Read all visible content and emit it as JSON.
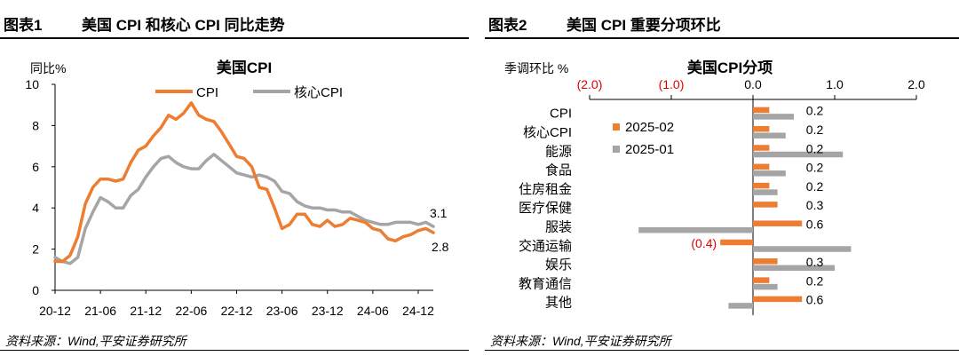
{
  "colors": {
    "primary": "#ED7D31",
    "secondary": "#A5A5A5",
    "negative_label": "#E00000"
  },
  "fig1": {
    "number": "图表1",
    "header_title": "美国 CPI 和核心 CPI 同比走势",
    "source": "资料来源：Wind,平安证券研究所"
  },
  "fig2": {
    "number": "图表2",
    "header_title": "美国 CPI 重要分项环比",
    "source": "资料来源：Wind,平安证券研究所"
  },
  "chart_data": [
    {
      "type": "line",
      "title": "美国CPI",
      "ylabel": "同比%",
      "ylim": [
        0,
        10
      ],
      "yticks": [
        "0",
        "2",
        "4",
        "6",
        "8",
        "10"
      ],
      "xtick_labels": [
        "20-12",
        "21-06",
        "21-12",
        "22-06",
        "22-12",
        "23-06",
        "23-12",
        "24-06",
        "24-12"
      ],
      "legend_position": "top",
      "grid": false,
      "x": [
        "20-12",
        "21-01",
        "21-02",
        "21-03",
        "21-04",
        "21-05",
        "21-06",
        "21-07",
        "21-08",
        "21-09",
        "21-10",
        "21-11",
        "21-12",
        "22-01",
        "22-02",
        "22-03",
        "22-04",
        "22-05",
        "22-06",
        "22-07",
        "22-08",
        "22-09",
        "22-10",
        "22-11",
        "22-12",
        "23-01",
        "23-02",
        "23-03",
        "23-04",
        "23-05",
        "23-06",
        "23-07",
        "23-08",
        "23-09",
        "23-10",
        "23-11",
        "23-12",
        "24-01",
        "24-02",
        "24-03",
        "24-04",
        "24-05",
        "24-06",
        "24-07",
        "24-08",
        "24-09",
        "24-10",
        "24-11",
        "24-12",
        "25-01",
        "25-02"
      ],
      "series": [
        {
          "name": "CPI",
          "color": "#ED7D31",
          "values": [
            1.4,
            1.4,
            1.7,
            2.6,
            4.2,
            5.0,
            5.4,
            5.4,
            5.3,
            5.4,
            6.2,
            6.8,
            7.0,
            7.5,
            7.9,
            8.5,
            8.3,
            8.6,
            9.1,
            8.5,
            8.3,
            8.2,
            7.7,
            7.1,
            6.5,
            6.4,
            6.0,
            5.0,
            4.9,
            4.0,
            3.0,
            3.2,
            3.7,
            3.7,
            3.2,
            3.1,
            3.4,
            3.1,
            3.2,
            3.5,
            3.4,
            3.3,
            3.0,
            2.9,
            2.5,
            2.4,
            2.6,
            2.7,
            2.9,
            3.0,
            2.8
          ]
        },
        {
          "name": "核心CPI",
          "color": "#A5A5A5",
          "values": [
            1.6,
            1.4,
            1.3,
            1.6,
            3.0,
            3.8,
            4.5,
            4.3,
            4.0,
            4.0,
            4.6,
            4.9,
            5.5,
            6.0,
            6.4,
            6.5,
            6.2,
            6.0,
            5.9,
            5.9,
            6.3,
            6.6,
            6.3,
            6.0,
            5.7,
            5.6,
            5.5,
            5.6,
            5.5,
            5.3,
            4.8,
            4.7,
            4.3,
            4.1,
            4.0,
            4.0,
            3.9,
            3.9,
            3.8,
            3.8,
            3.6,
            3.4,
            3.3,
            3.2,
            3.2,
            3.3,
            3.3,
            3.3,
            3.2,
            3.3,
            3.1
          ]
        }
      ],
      "end_labels": [
        "3.1",
        "2.8"
      ]
    },
    {
      "type": "bar",
      "orientation": "horizontal",
      "title": "美国CPI分项",
      "ylabel": "季调环比 %",
      "xlim": [
        -2.0,
        2.0
      ],
      "xtick_labels": [
        "(2.0)",
        "(1.0)",
        "0.0",
        "1.0",
        "2.0"
      ],
      "legend_position": "center-left",
      "categories": [
        "CPI",
        "核心CPI",
        "能源",
        "食品",
        "住房租金",
        "医疗保健",
        "服装",
        "交通运输",
        "娱乐",
        "教育通信",
        "其他"
      ],
      "series": [
        {
          "name": "2025-02",
          "color": "#ED7D31",
          "values": [
            0.2,
            0.2,
            0.2,
            0.2,
            0.2,
            0.3,
            0.6,
            -0.4,
            0.3,
            0.2,
            0.6
          ],
          "labels": [
            "0.2",
            "0.2",
            "0.2",
            "0.2",
            "0.2",
            "0.3",
            "0.6",
            "(0.4)",
            "0.3",
            "0.2",
            "0.6"
          ]
        },
        {
          "name": "2025-01",
          "color": "#A5A5A5",
          "values": [
            0.5,
            0.4,
            1.1,
            0.4,
            0.3,
            0.0,
            -1.4,
            1.2,
            1.0,
            0.3,
            -0.3
          ]
        }
      ]
    }
  ]
}
